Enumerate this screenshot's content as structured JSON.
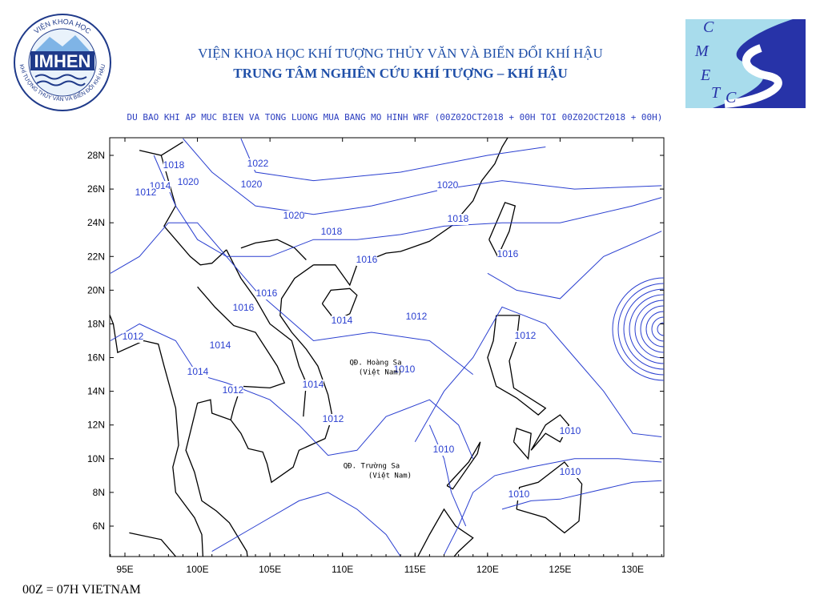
{
  "header": {
    "institute": "VIỆN KHOA HỌC KHÍ TƯỢNG THỦY VĂN VÀ BIẾN ĐỔI KHÍ HẬU",
    "center": "TRUNG TÂM NGHIÊN CỨU KHÍ TƯỢNG – KHÍ HẬU",
    "subtitle": "DU BAO KHI AP MUC BIEN VA TONG LUONG MUA BANG MO HINH WRF (00Z02OCT2018 + 00H TOI 00Z02OCT2018 + 00H)"
  },
  "logo_left": {
    "name": "IMHEN",
    "arc_top": "VIỆN KHOA HỌC",
    "arc_bottom": "KHÍ TƯỢNG THỦY VĂN VÀ BIẾN ĐỔI KHÍ HẬU"
  },
  "logo_right": {
    "letters": [
      "C",
      "M",
      "E",
      "T",
      "C"
    ]
  },
  "map": {
    "xticks": [
      "95E",
      "100E",
      "105E",
      "110E",
      "115E",
      "120E",
      "125E",
      "130E"
    ],
    "yticks": [
      "28N",
      "26N",
      "24N",
      "22N",
      "20N",
      "18N",
      "16N",
      "14N",
      "12N",
      "10N",
      "8N",
      "6N"
    ],
    "contour_labels": [
      "1018",
      "1022",
      "1014",
      "1020",
      "1012",
      "1020",
      "1020",
      "1018",
      "1020",
      "1018",
      "1016",
      "1016",
      "1016",
      "1016",
      "1014",
      "1012",
      "1012",
      "1014",
      "1012",
      "1014",
      "1010",
      "1012",
      "1014",
      "1012",
      "1010",
      "1010",
      "1010",
      "1010"
    ],
    "places": [
      "QĐ. Hoàng Sa",
      "(Việt Nam)",
      "QĐ. Trường Sa",
      "(Việt Nam)"
    ]
  },
  "footer": "00Z = 07H VIETNAM"
}
